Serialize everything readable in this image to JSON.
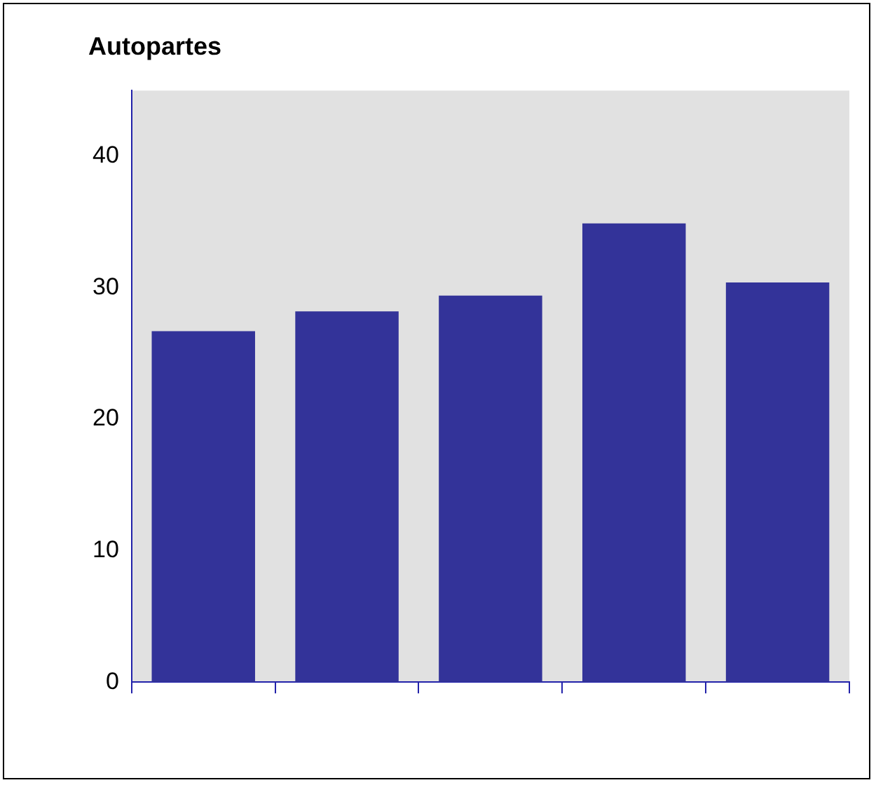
{
  "chart_data": {
    "type": "bar",
    "title": "Autopartes",
    "categories": [
      null,
      null,
      null,
      null,
      null
    ],
    "values": [
      26.7,
      28.2,
      29.4,
      34.9,
      30.4
    ],
    "color": "#333399",
    "ylim": [
      0,
      45
    ],
    "yticks": [
      0,
      10,
      20,
      30,
      40
    ],
    "grid": false,
    "legend": false
  }
}
